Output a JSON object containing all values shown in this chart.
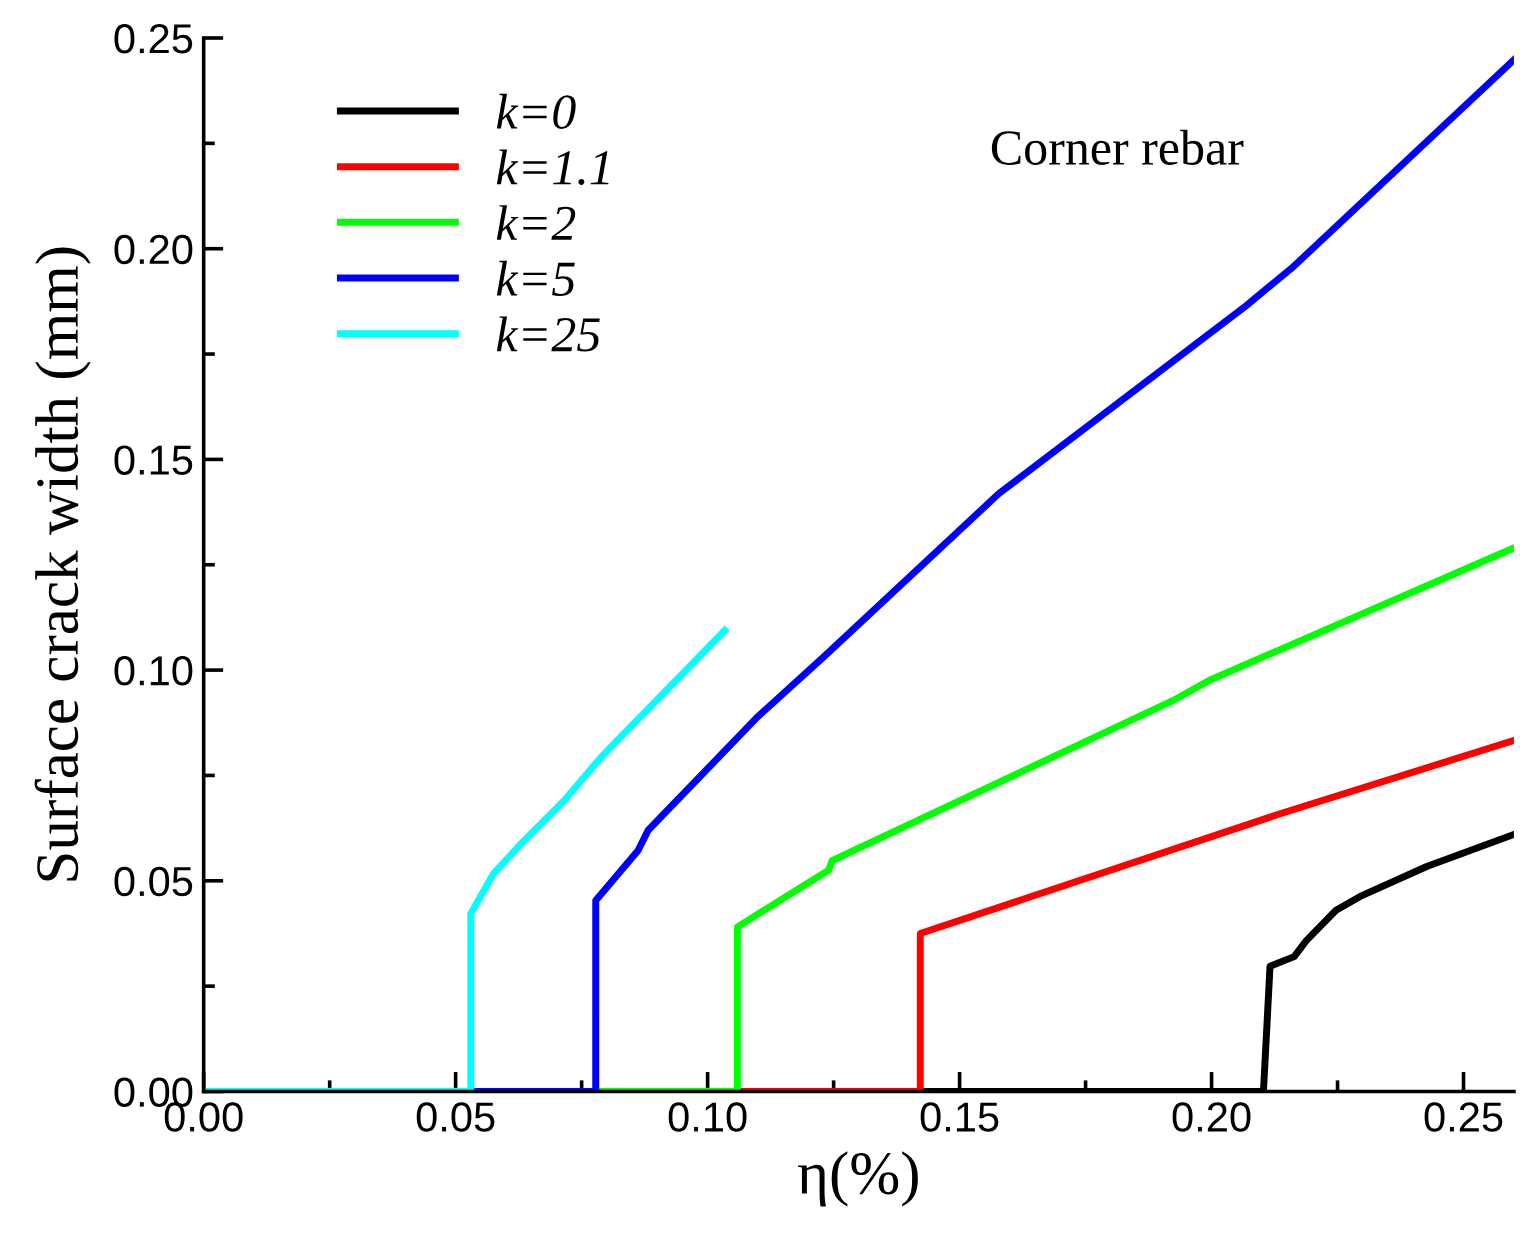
{
  "chart_data": {
    "type": "line",
    "xlabel": "η(%)",
    "ylabel": "Surface crack width (mm)",
    "annotations": [
      "Corner rebar"
    ],
    "xlim": [
      0,
      0.26
    ],
    "ylim": [
      0,
      0.25
    ],
    "xticks": [
      {
        "value": 0,
        "label": "0.00"
      },
      {
        "value": 0.05,
        "label": "0.05"
      },
      {
        "value": 0.1,
        "label": "0.10"
      },
      {
        "value": 0.15,
        "label": "0.15"
      },
      {
        "value": 0.2,
        "label": "0.20"
      },
      {
        "value": 0.25,
        "label": "0.25"
      }
    ],
    "yticks": [
      {
        "value": 0,
        "label": "0.00"
      },
      {
        "value": 0.05,
        "label": "0.05"
      },
      {
        "value": 0.1,
        "label": "0.10"
      },
      {
        "value": 0.15,
        "label": "0.15"
      },
      {
        "value": 0.2,
        "label": "0.20"
      },
      {
        "value": 0.25,
        "label": "0.25"
      }
    ],
    "grid": false,
    "legend": "top left",
    "marker": "none",
    "line_style": "solid",
    "series": [
      {
        "name": "k=0",
        "color": "#000000",
        "x": [
          0,
          0.2103,
          0.2116,
          0.2164,
          0.2188,
          0.2247,
          0.2295,
          0.2427,
          0.26
        ],
        "values": [
          0,
          0,
          0.0297,
          0.032,
          0.0358,
          0.043,
          0.0463,
          0.0534,
          0.061
        ]
      },
      {
        "name": "k=1.1",
        "color": "#ff0000",
        "x": [
          0,
          0.1422,
          0.1422,
          0.2136,
          0.26
        ],
        "values": [
          0,
          0,
          0.0375,
          0.0659,
          0.0833
        ]
      },
      {
        "name": "k=2",
        "color": "#00ff00",
        "x": [
          0,
          0.1059,
          0.1059,
          0.1101,
          0.124,
          0.1247,
          0.1924,
          0.1996,
          0.26
        ],
        "values": [
          0,
          0,
          0.039,
          0.0422,
          0.0525,
          0.0548,
          0.0928,
          0.0976,
          0.129
        ]
      },
      {
        "name": "k=5",
        "color": "#0000ff",
        "x": [
          0,
          0.0778,
          0.0778,
          0.0862,
          0.0882,
          0.11,
          0.1232,
          0.1578,
          0.2068,
          0.2162,
          0.26
        ],
        "values": [
          0,
          0,
          0.0453,
          0.0572,
          0.062,
          0.089,
          0.1033,
          0.1419,
          0.1864,
          0.1957,
          0.2448
        ]
      },
      {
        "name": "k=25",
        "color": "#00ffff",
        "x": [
          0,
          0.053,
          0.053,
          0.0575,
          0.063,
          0.0716,
          0.0789,
          0.1034
        ],
        "values": [
          0,
          0,
          0.0422,
          0.0517,
          0.0588,
          0.0691,
          0.0794,
          0.1094
        ]
      }
    ]
  }
}
